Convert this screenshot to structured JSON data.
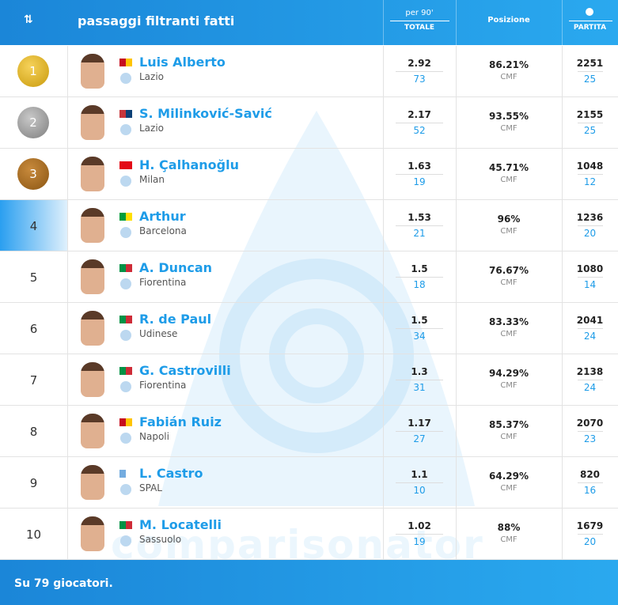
{
  "header": {
    "sort_icon": "⇅",
    "title": "passaggi filtranti fatti",
    "per90": "per 90'",
    "total": "TOTALE",
    "position": "Posizione",
    "games": "PARTITA"
  },
  "table": {
    "rows": [
      {
        "rank": "1",
        "name": "Luis Alberto",
        "team": "Lazio",
        "per90": "2.92",
        "total": "73",
        "percent": "86.21%",
        "role": "CMF",
        "minutes": "2251",
        "games": "25"
      },
      {
        "rank": "2",
        "name": "S. Milinković-Savić",
        "team": "Lazio",
        "per90": "2.17",
        "total": "52",
        "percent": "93.55%",
        "role": "CMF",
        "minutes": "2155",
        "games": "25"
      },
      {
        "rank": "3",
        "name": "H. Çalhanoğlu",
        "team": "Milan",
        "per90": "1.63",
        "total": "19",
        "percent": "45.71%",
        "role": "CMF",
        "minutes": "1048",
        "games": "12"
      },
      {
        "rank": "4",
        "name": "Arthur",
        "team": "Barcelona",
        "per90": "1.53",
        "total": "21",
        "percent": "96%",
        "role": "CMF",
        "minutes": "1236",
        "games": "20"
      },
      {
        "rank": "5",
        "name": "A. Duncan",
        "team": "Fiorentina",
        "per90": "1.5",
        "total": "18",
        "percent": "76.67%",
        "role": "CMF",
        "minutes": "1080",
        "games": "14"
      },
      {
        "rank": "6",
        "name": "R. de Paul",
        "team": "Udinese",
        "per90": "1.5",
        "total": "34",
        "percent": "83.33%",
        "role": "CMF",
        "minutes": "2041",
        "games": "24"
      },
      {
        "rank": "7",
        "name": "G. Castrovilli",
        "team": "Fiorentina",
        "per90": "1.3",
        "total": "31",
        "percent": "94.29%",
        "role": "CMF",
        "minutes": "2138",
        "games": "24"
      },
      {
        "rank": "8",
        "name": "Fabián Ruiz",
        "team": "Napoli",
        "per90": "1.17",
        "total": "27",
        "percent": "85.37%",
        "role": "CMF",
        "minutes": "2070",
        "games": "23"
      },
      {
        "rank": "9",
        "name": "L. Castro",
        "team": "SPAL",
        "per90": "1.1",
        "total": "10",
        "percent": "64.29%",
        "role": "CMF",
        "minutes": "820",
        "games": "16"
      },
      {
        "rank": "10",
        "name": "M. Locatelli",
        "team": "Sassuolo",
        "per90": "1.02",
        "total": "19",
        "percent": "88%",
        "role": "CMF",
        "minutes": "1679",
        "games": "20"
      }
    ]
  },
  "watermark": "comparisonator",
  "footer": {
    "text": "Su 79 giocatori."
  }
}
